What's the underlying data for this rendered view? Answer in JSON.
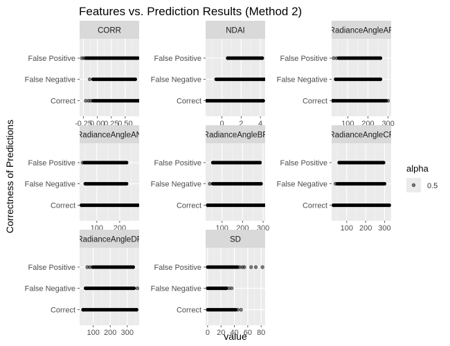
{
  "chart_data": {
    "type": "scatter",
    "title": "Features vs. Prediction Results (Method 2)",
    "xlabel": "value",
    "ylabel": "Correctness of Predictions",
    "categories": [
      "False Positive",
      "False Negative",
      "Correct"
    ],
    "legend": {
      "title": "alpha",
      "label": "0.5",
      "position": "right"
    },
    "grid": true,
    "panels": [
      {
        "strip": "CORR",
        "xlim": [
          -0.32,
          0.75
        ],
        "xticks": [
          -0.25,
          0.0,
          0.25,
          0.5
        ],
        "xtick_labels": [
          "-0.25",
          "0.00",
          "0.25",
          "0.50"
        ],
        "series": [
          {
            "name": "False Positive",
            "range": [
              -0.2,
              0.73
            ],
            "points": [
              -0.28,
              -0.24,
              -0.21,
              -0.15,
              -0.08,
              0.72
            ]
          },
          {
            "name": "False Negative",
            "range": [
              -0.08,
              0.68
            ],
            "points": [
              -0.14,
              -0.07,
              0.68
            ]
          },
          {
            "name": "Correct",
            "range": [
              -0.08,
              0.74
            ],
            "points": [
              -0.21,
              -0.16,
              -0.12,
              0.74
            ]
          }
        ]
      },
      {
        "strip": "NDAI",
        "xlim": [
          -1.7,
          4.5
        ],
        "xticks": [
          0,
          2,
          4
        ],
        "xtick_labels": [
          "0",
          "2",
          "4"
        ],
        "series": [
          {
            "name": "False Positive",
            "range": [
              0.6,
              4.2
            ],
            "points": [
              0.6,
              4.2
            ]
          },
          {
            "name": "False Negative",
            "range": [
              -0.6,
              4.4
            ],
            "points": [
              -0.6,
              4.4
            ]
          },
          {
            "name": "Correct",
            "range": [
              -1.6,
              4.3
            ],
            "points": [
              -1.6,
              4.3
            ]
          }
        ]
      },
      {
        "strip": "RadianceAngleAF",
        "xlim": [
          20,
          315
        ],
        "xticks": [
          100,
          200,
          300
        ],
        "xtick_labels": [
          "100",
          "200",
          "300"
        ],
        "series": [
          {
            "name": "False Positive",
            "range": [
              55,
              262
            ],
            "points": [
              30,
              45,
              262
            ]
          },
          {
            "name": "False Negative",
            "range": [
              40,
              262
            ],
            "points": [
              40,
              262
            ]
          },
          {
            "name": "Correct",
            "range": [
              25,
              290
            ],
            "points": [
              25,
              300
            ]
          }
        ]
      },
      {
        "strip": "RadianceAngleAN",
        "xlim": [
          25,
          285
        ],
        "xticks": [
          100,
          200
        ],
        "xtick_labels": [
          "100",
          "200"
        ],
        "series": [
          {
            "name": "False Positive",
            "range": [
              45,
              230
            ],
            "points": [
              38,
              230
            ]
          },
          {
            "name": "False Negative",
            "range": [
              50,
              230
            ],
            "points": [
              50,
              230
            ]
          },
          {
            "name": "Correct",
            "range": [
              33,
              280
            ],
            "points": [
              33,
              280
            ]
          }
        ]
      },
      {
        "strip": "RadianceAngleBF",
        "xlim": [
          20,
          310
        ],
        "xticks": [
          100,
          200,
          300
        ],
        "xtick_labels": [
          "100",
          "200",
          "300"
        ],
        "series": [
          {
            "name": "False Positive",
            "range": [
              55,
              285
            ],
            "points": [
              55,
              285
            ]
          },
          {
            "name": "False Negative",
            "range": [
              55,
              290
            ],
            "points": [
              40,
              290
            ]
          },
          {
            "name": "Correct",
            "range": [
              30,
              305
            ],
            "points": [
              30,
              305
            ]
          }
        ]
      },
      {
        "strip": "RadianceAngleCF",
        "xlim": [
          20,
          335
        ],
        "xticks": [
          100,
          200,
          300
        ],
        "xtick_labels": [
          "100",
          "200",
          "300"
        ],
        "series": [
          {
            "name": "False Positive",
            "range": [
              60,
              295
            ],
            "points": [
              60,
              295
            ]
          },
          {
            "name": "False Negative",
            "range": [
              50,
              300
            ],
            "points": [
              40,
              300
            ]
          },
          {
            "name": "Correct",
            "range": [
              30,
              325
            ],
            "points": [
              30,
              325
            ]
          }
        ]
      },
      {
        "strip": "RadianceAngleDF",
        "xlim": [
          20,
          370
        ],
        "xticks": [
          100,
          200,
          300
        ],
        "xtick_labels": [
          "100",
          "200",
          "300"
        ],
        "series": [
          {
            "name": "False Positive",
            "range": [
              100,
              335
            ],
            "points": [
              65,
              80,
              95,
              335
            ]
          },
          {
            "name": "False Negative",
            "range": [
              55,
              340
            ],
            "points": [
              55,
              360
            ]
          },
          {
            "name": "Correct",
            "range": [
              40,
              355
            ],
            "points": [
              40,
              355
            ]
          }
        ]
      },
      {
        "strip": "SD",
        "xlim": [
          -3,
          86
        ],
        "xticks": [
          0,
          20,
          40,
          60,
          80
        ],
        "xtick_labels": [
          "0",
          "20",
          "40",
          "60",
          "80"
        ],
        "series": [
          {
            "name": "False Positive",
            "range": [
              0,
              44
            ],
            "points": [
              45,
              48,
              52,
              55,
              65,
              72,
              82
            ]
          },
          {
            "name": "False Negative",
            "range": [
              0,
              28
            ],
            "points": [
              28,
              32,
              36
            ]
          },
          {
            "name": "Correct",
            "range": [
              0,
              42
            ],
            "points": [
              45,
              50
            ]
          }
        ]
      }
    ]
  }
}
